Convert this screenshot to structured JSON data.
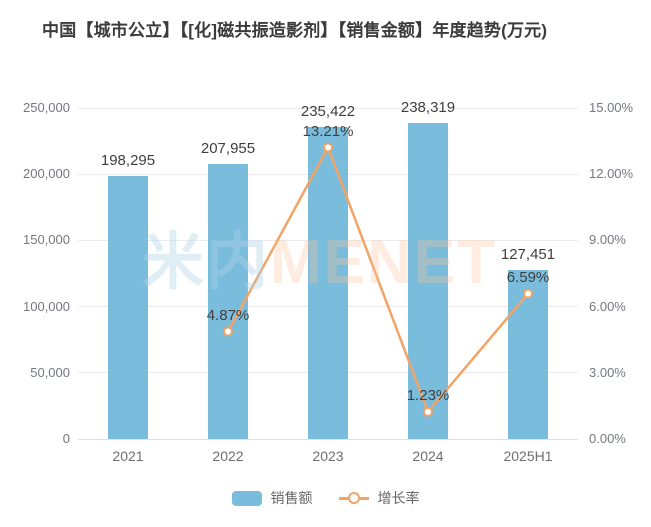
{
  "title": "中国【城市公立】【[化]磁共振造影剂】【销售金额】年度趋势(万元)",
  "watermark": {
    "cn": "米内",
    "en": "MENET"
  },
  "colors": {
    "bar": "#7ABCDC",
    "line": "#F2A466",
    "grid": "#ececf0",
    "title_text": "#3b3b3b",
    "axis_text": "#75787f",
    "data_label_text": "#3f3f3f"
  },
  "legend": {
    "sales_label": "销售额",
    "growth_label": "增长率"
  },
  "chart_data": {
    "type": "bar+line",
    "title": "中国【城市公立】【[化]磁共振造影剂】【销售金额】年度趋势(万元)",
    "categories": [
      "2021",
      "2022",
      "2023",
      "2024",
      "2025H1"
    ],
    "series": [
      {
        "name": "销售额",
        "type": "bar",
        "axis": "left",
        "values": [
          198295,
          207955,
          235422,
          238319,
          127451
        ],
        "labels": [
          "198,295",
          "207,955",
          "235,422",
          "238,319",
          "127,451"
        ]
      },
      {
        "name": "增长率",
        "type": "line",
        "axis": "right",
        "unit": "%",
        "values": [
          null,
          4.87,
          13.21,
          1.23,
          6.59
        ],
        "labels": [
          null,
          "4.87%",
          "13.21%",
          "1.23%",
          "6.59%"
        ]
      }
    ],
    "left_axis": {
      "min": 0,
      "max": 250000,
      "step": 50000,
      "tick_labels": [
        "0",
        "50,000",
        "100,000",
        "150,000",
        "200,000",
        "250,000"
      ]
    },
    "right_axis": {
      "min": 0,
      "max": 15,
      "step": 3,
      "tick_labels": [
        "0.00%",
        "3.00%",
        "6.00%",
        "9.00%",
        "12.00%",
        "15.00%"
      ]
    },
    "grid": true,
    "legend_position": "bottom"
  }
}
